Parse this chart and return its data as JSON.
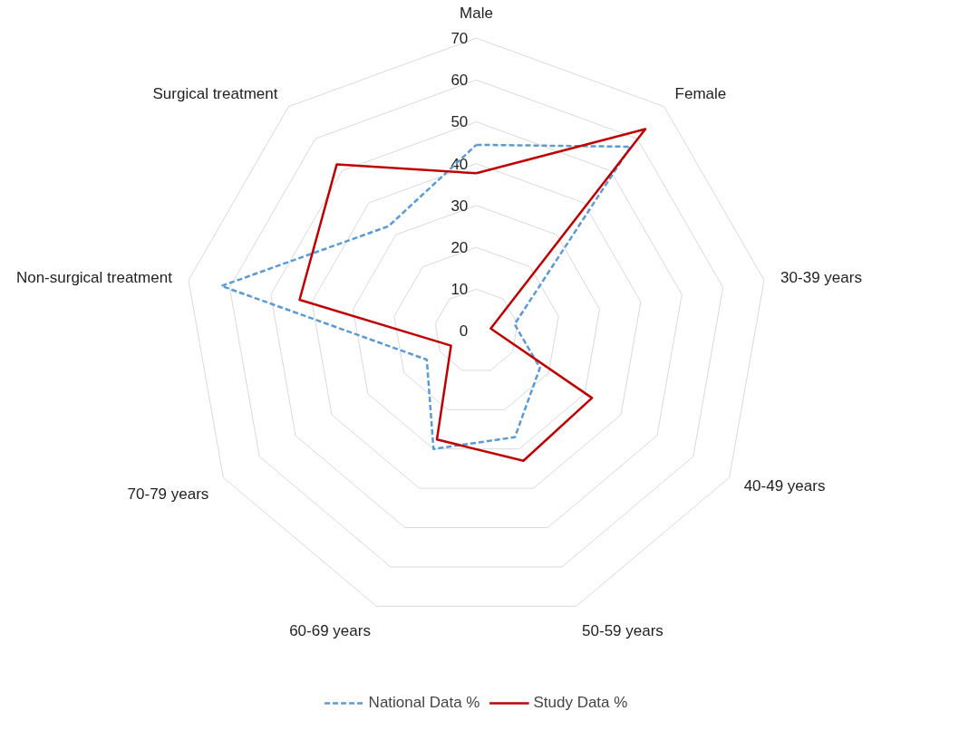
{
  "chart_data": {
    "type": "radar",
    "categories": [
      "Male",
      "Female",
      "30-39 years",
      "40-49 years",
      "50-59 years",
      "60-69 years",
      "70-79 years",
      "Non-surgical treatment",
      "Surgical treatment"
    ],
    "series": [
      {
        "name": "National Data %",
        "color": "#5b9bd5",
        "line_style": "dashed",
        "values": [
          44.5,
          57.5,
          9.3,
          17.6,
          27,
          30,
          13.7,
          62,
          32.7
        ]
      },
      {
        "name": "Study Data %",
        "color": "#c00000",
        "line_style": "solid",
        "values": [
          37.7,
          63,
          3.5,
          32,
          33,
          27.6,
          7,
          43,
          52
        ]
      }
    ],
    "ylim": [
      0,
      70
    ],
    "yticks": [
      0,
      10,
      20,
      30,
      40,
      50,
      60,
      70
    ],
    "grid": true,
    "legend": "bottom",
    "marker": "none"
  }
}
